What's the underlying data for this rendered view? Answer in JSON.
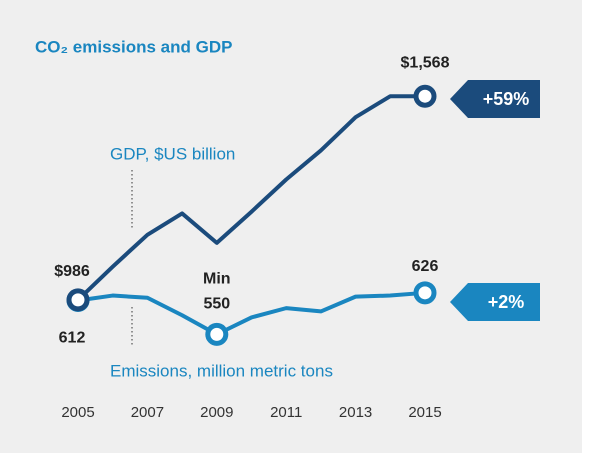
{
  "chart_data": {
    "type": "line",
    "title": "CO₂ emissions and GDP",
    "x": [
      2005,
      2006,
      2007,
      2008,
      2009,
      2010,
      2011,
      2012,
      2013,
      2014,
      2015
    ],
    "xlim": [
      2005,
      2015
    ],
    "xticks": [
      2005,
      2007,
      2009,
      2011,
      2013,
      2015
    ],
    "ylim": [
      700,
      1700
    ],
    "y2lim": [
      430,
      1070
    ],
    "series": [
      {
        "name": "GDP, $US billion",
        "color": "#1b4b7c",
        "values": [
          986,
          1081,
          1172,
          1233,
          1149,
          1238,
          1330,
          1413,
          1508,
          1568,
          1568
        ],
        "value_labels": [
          "$986",
          null,
          null,
          null,
          null,
          null,
          null,
          null,
          null,
          null,
          "$1,568"
        ]
      },
      {
        "name": "Emissions, million metric tons",
        "color": "#1a86c0",
        "axis": "y2",
        "values": [
          612,
          621,
          617,
          585,
          550,
          581,
          598,
          592,
          619,
          621,
          626
        ]
      }
    ],
    "annotations": {
      "min": "Min",
      "gdp_change": "+59%",
      "emissions_change": "+2%"
    }
  }
}
